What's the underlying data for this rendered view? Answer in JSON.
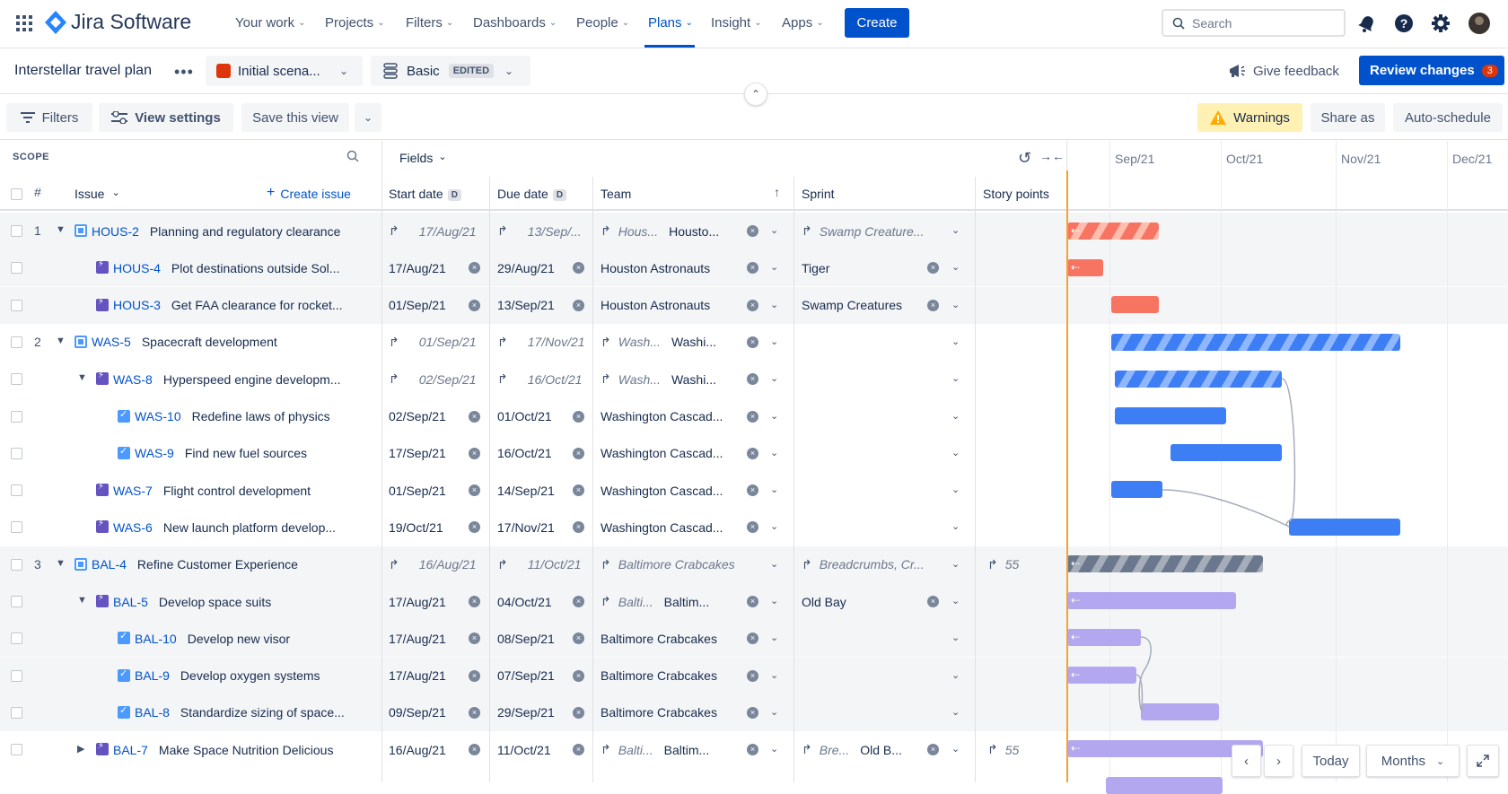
{
  "brand": {
    "name": "Jira Software"
  },
  "nav": {
    "items": [
      {
        "label": "Your work"
      },
      {
        "label": "Projects"
      },
      {
        "label": "Filters"
      },
      {
        "label": "Dashboards"
      },
      {
        "label": "People"
      },
      {
        "label": "Plans"
      },
      {
        "label": "Insight"
      },
      {
        "label": "Apps"
      }
    ],
    "create_label": "Create",
    "search_placeholder": "Search"
  },
  "plan": {
    "title": "Interstellar travel plan",
    "scenario": "Initial scena...",
    "view_name": "Basic",
    "view_badge": "EDITED",
    "feedback_label": "Give feedback",
    "review_label": "Review changes",
    "review_count": "3"
  },
  "toolbar": {
    "filters": "Filters",
    "view_settings": "View settings",
    "save_view": "Save this view",
    "warnings": "Warnings",
    "share_as": "Share as",
    "auto_schedule": "Auto-schedule"
  },
  "grid": {
    "scope_label": "SCOPE",
    "fields_label": "Fields",
    "hash": "#",
    "issue_header": "Issue",
    "create_issue": "Create issue",
    "columns": {
      "start_date": "Start date",
      "due_date": "Due date",
      "date_badge": "D",
      "team": "Team",
      "sprint": "Sprint",
      "story_points": "Story points"
    }
  },
  "timeline": {
    "months": [
      "Sep/21",
      "Oct/21",
      "Nov/21",
      "Dec/21"
    ]
  },
  "rows": [
    {
      "num": "1",
      "key": "HOUS-2",
      "summary": "Planning and regulatory clearance",
      "start": "17/Aug/21",
      "due": "13/Sep/...",
      "team_short": "Hous...",
      "team": "Housto...",
      "sprint": "Swamp Creature...",
      "points": "",
      "inherited": true
    },
    {
      "num": "",
      "key": "HOUS-4",
      "summary": "Plot destinations outside Sol...",
      "start": "17/Aug/21",
      "due": "29/Aug/21",
      "team_short": "",
      "team": "Houston Astronauts",
      "sprint": "Tiger",
      "points": "",
      "inherited": false
    },
    {
      "num": "",
      "key": "HOUS-3",
      "summary": "Get FAA clearance for rocket...",
      "start": "01/Sep/21",
      "due": "13/Sep/21",
      "team_short": "",
      "team": "Houston Astronauts",
      "sprint": "Swamp Creatures",
      "points": "",
      "inherited": false
    },
    {
      "num": "2",
      "key": "WAS-5",
      "summary": "Spacecraft development",
      "start": "01/Sep/21",
      "due": "17/Nov/21",
      "team_short": "Wash...",
      "team": "Washi...",
      "sprint": "",
      "points": "",
      "inherited": true
    },
    {
      "num": "",
      "key": "WAS-8",
      "summary": "Hyperspeed engine developm...",
      "start": "02/Sep/21",
      "due": "16/Oct/21",
      "team_short": "Wash...",
      "team": "Washi...",
      "sprint": "",
      "points": "",
      "inherited": true
    },
    {
      "num": "",
      "key": "WAS-10",
      "summary": "Redefine laws of physics",
      "start": "02/Sep/21",
      "due": "01/Oct/21",
      "team_short": "",
      "team": "Washington Cascad...",
      "sprint": "",
      "points": "",
      "inherited": false
    },
    {
      "num": "",
      "key": "WAS-9",
      "summary": "Find new fuel sources",
      "start": "17/Sep/21",
      "due": "16/Oct/21",
      "team_short": "",
      "team": "Washington Cascad...",
      "sprint": "",
      "points": "",
      "inherited": false
    },
    {
      "num": "",
      "key": "WAS-7",
      "summary": "Flight control development",
      "start": "01/Sep/21",
      "due": "14/Sep/21",
      "team_short": "",
      "team": "Washington Cascad...",
      "sprint": "",
      "points": "",
      "inherited": false
    },
    {
      "num": "",
      "key": "WAS-6",
      "summary": "New launch platform develop...",
      "start": "19/Oct/21",
      "due": "17/Nov/21",
      "team_short": "",
      "team": "Washington Cascad...",
      "sprint": "",
      "points": "",
      "inherited": false
    },
    {
      "num": "3",
      "key": "BAL-4",
      "summary": "Refine Customer Experience",
      "start": "16/Aug/21",
      "due": "11/Oct/21",
      "team_short": "",
      "team": "Baltimore Crabcakes",
      "sprint": "Breadcrumbs, Cr...",
      "points": "55",
      "inherited": true
    },
    {
      "num": "",
      "key": "BAL-5",
      "summary": "Develop space suits",
      "start": "17/Aug/21",
      "due": "04/Oct/21",
      "team_short": "Balti...",
      "team": "Baltim...",
      "sprint": "Old Bay",
      "points": "",
      "inherited": false
    },
    {
      "num": "",
      "key": "BAL-10",
      "summary": "Develop new visor",
      "start": "17/Aug/21",
      "due": "08/Sep/21",
      "team_short": "",
      "team": "Baltimore Crabcakes",
      "sprint": "",
      "points": "",
      "inherited": false
    },
    {
      "num": "",
      "key": "BAL-9",
      "summary": "Develop oxygen systems",
      "start": "17/Aug/21",
      "due": "07/Sep/21",
      "team_short": "",
      "team": "Baltimore Crabcakes",
      "sprint": "",
      "points": "",
      "inherited": false
    },
    {
      "num": "",
      "key": "BAL-8",
      "summary": "Standardize sizing of space...",
      "start": "09/Sep/21",
      "due": "29/Sep/21",
      "team_short": "",
      "team": "Baltimore Crabcakes",
      "sprint": "",
      "points": "",
      "inherited": false
    },
    {
      "num": "",
      "key": "BAL-7",
      "summary": "Make Space Nutrition Delicious",
      "start": "16/Aug/21",
      "due": "11/Oct/21",
      "team_short": "Balti...",
      "team": "Baltim...",
      "sprint_short": "Bre...",
      "sprint": "Old B...",
      "points": "55",
      "inherited": false
    }
  ],
  "controls": {
    "today": "Today",
    "months": "Months"
  },
  "colors": {
    "accent": "#0052CC",
    "today_line": "#F6A230",
    "warning_bg": "#FFF0B3"
  }
}
